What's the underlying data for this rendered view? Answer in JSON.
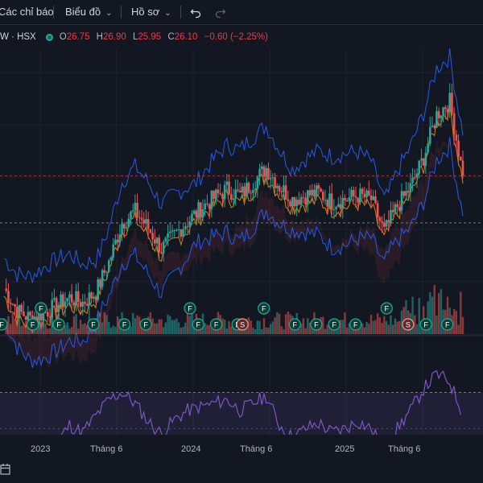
{
  "toolbar": {
    "indicators_label": "Các chỉ báo",
    "chart_label": "Biểu đồ",
    "profile_label": "Hồ sơ",
    "undo_icon": "undo-icon",
    "redo_icon": "redo-icon"
  },
  "legend": {
    "symbol": "W · HSX",
    "o_label": "O",
    "o_value": "26.75",
    "h_label": "H",
    "h_value": "26.90",
    "l_label": "L",
    "l_value": "25.95",
    "c_label": "C",
    "c_value": "26.10",
    "change": "−0.60 (−2.25%)"
  },
  "time_axis": {
    "labels": [
      "2023",
      "Tháng 6",
      "2024",
      "Tháng 6",
      "2025",
      "Tháng 6"
    ]
  },
  "colors": {
    "background": "#131722",
    "up": "#26a69a",
    "down": "#ef5350",
    "bollinger": "#2962ff",
    "ma": "#ff9800",
    "rsi": "#7e57c2"
  },
  "chart_data": {
    "type": "line",
    "x": [
      "2022-10",
      "2022-11",
      "2022-12",
      "2023-01",
      "2023-02",
      "2023-03",
      "2023-04",
      "2023-05",
      "2023-06",
      "2023-07",
      "2023-08",
      "2023-09",
      "2023-10",
      "2023-11",
      "2023-12",
      "2024-01",
      "2024-02",
      "2024-03",
      "2024-04",
      "2024-05",
      "2024-06",
      "2024-07",
      "2024-08",
      "2024-09",
      "2024-10",
      "2024-11",
      "2024-12",
      "2025-01",
      "2025-02",
      "2025-03",
      "2025-04",
      "2025-05",
      "2025-06",
      "2025-07",
      "2025-08",
      "2025-09"
    ],
    "series": [
      {
        "values": [
          17.5,
          15.8,
          15.2,
          15.6,
          16.2,
          16.8,
          16.4,
          17.2,
          19.5,
          22.5,
          23.4,
          22.1,
          20.5,
          21.6,
          22.6,
          23.6,
          24.4,
          25.1,
          24.6,
          25.6,
          26.7,
          25.3,
          24.3,
          24.6,
          24.8,
          24.1,
          24.3,
          24.6,
          24.3,
          21.8,
          23.8,
          25.2,
          27.5,
          30.8,
          31.8,
          26.1
        ]
      }
    ],
    "rsi": [
      40,
      36,
      33,
      38,
      42,
      52,
      48,
      57,
      66,
      70,
      64,
      54,
      47,
      55,
      60,
      62,
      64,
      66,
      60,
      64,
      68,
      52,
      45,
      50,
      53,
      48,
      50,
      54,
      50,
      38,
      50,
      60,
      72,
      80,
      76,
      58
    ],
    "ylim": [
      14,
      34
    ],
    "rsi_ylim": [
      0,
      100
    ],
    "markers": [
      {
        "date": "2022-10",
        "label": "F"
      },
      {
        "date": "2022-12",
        "label": "F"
      },
      {
        "date": "2023-01",
        "label": "F"
      },
      {
        "date": "2023-02",
        "label": "F"
      },
      {
        "date": "2023-05",
        "label": "F"
      },
      {
        "date": "2023-07",
        "label": "F"
      },
      {
        "date": "2023-09",
        "label": "F"
      },
      {
        "date": "2023-12",
        "label": "F"
      },
      {
        "date": "2024-01",
        "label": "F"
      },
      {
        "date": "2024-02",
        "label": "F"
      },
      {
        "date": "2024-04",
        "label": "F"
      },
      {
        "date": "2024-04",
        "label": "S"
      },
      {
        "date": "2024-06",
        "label": "F"
      },
      {
        "date": "2024-08",
        "label": "F"
      },
      {
        "date": "2024-10",
        "label": "F"
      },
      {
        "date": "2024-11",
        "label": "F"
      },
      {
        "date": "2025-01",
        "label": "F"
      },
      {
        "date": "2025-03",
        "label": "F"
      },
      {
        "date": "2025-05",
        "label": "S"
      },
      {
        "date": "2025-06",
        "label": "F"
      },
      {
        "date": "2025-08",
        "label": "F"
      }
    ]
  }
}
